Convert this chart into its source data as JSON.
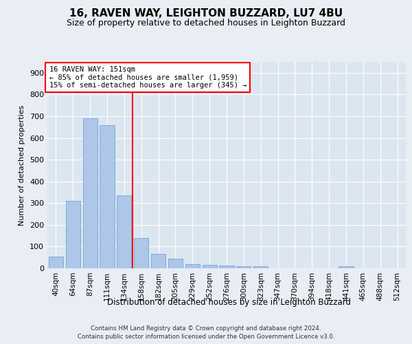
{
  "title": "16, RAVEN WAY, LEIGHTON BUZZARD, LU7 4BU",
  "subtitle": "Size of property relative to detached houses in Leighton Buzzard",
  "xlabel": "Distribution of detached houses by size in Leighton Buzzard",
  "ylabel": "Number of detached properties",
  "footer_line1": "Contains HM Land Registry data © Crown copyright and database right 2024.",
  "footer_line2": "Contains public sector information licensed under the Open Government Licence v3.0.",
  "bar_labels": [
    "40sqm",
    "64sqm",
    "87sqm",
    "111sqm",
    "134sqm",
    "158sqm",
    "182sqm",
    "205sqm",
    "229sqm",
    "252sqm",
    "276sqm",
    "300sqm",
    "323sqm",
    "347sqm",
    "370sqm",
    "394sqm",
    "418sqm",
    "441sqm",
    "465sqm",
    "488sqm",
    "512sqm"
  ],
  "bar_values": [
    55,
    310,
    690,
    660,
    335,
    140,
    65,
    45,
    20,
    15,
    13,
    10,
    10,
    0,
    0,
    0,
    0,
    8,
    0,
    0,
    0
  ],
  "bar_color": "#aec6e8",
  "bar_edge_color": "#7aadd6",
  "vline_color": "red",
  "annotation_text": "16 RAVEN WAY: 151sqm\n← 85% of detached houses are smaller (1,959)\n15% of semi-detached houses are larger (345) →",
  "annotation_box_color": "white",
  "annotation_box_edge": "red",
  "ylim": [
    0,
    950
  ],
  "yticks": [
    0,
    100,
    200,
    300,
    400,
    500,
    600,
    700,
    800,
    900
  ],
  "bg_color": "#e8eef4",
  "plot_bg_color": "#dce6f0",
  "grid_color": "white",
  "title_fontsize": 11,
  "subtitle_fontsize": 9,
  "ylabel_fontsize": 8,
  "xlabel_fontsize": 8.5,
  "tick_fontsize": 7.5
}
